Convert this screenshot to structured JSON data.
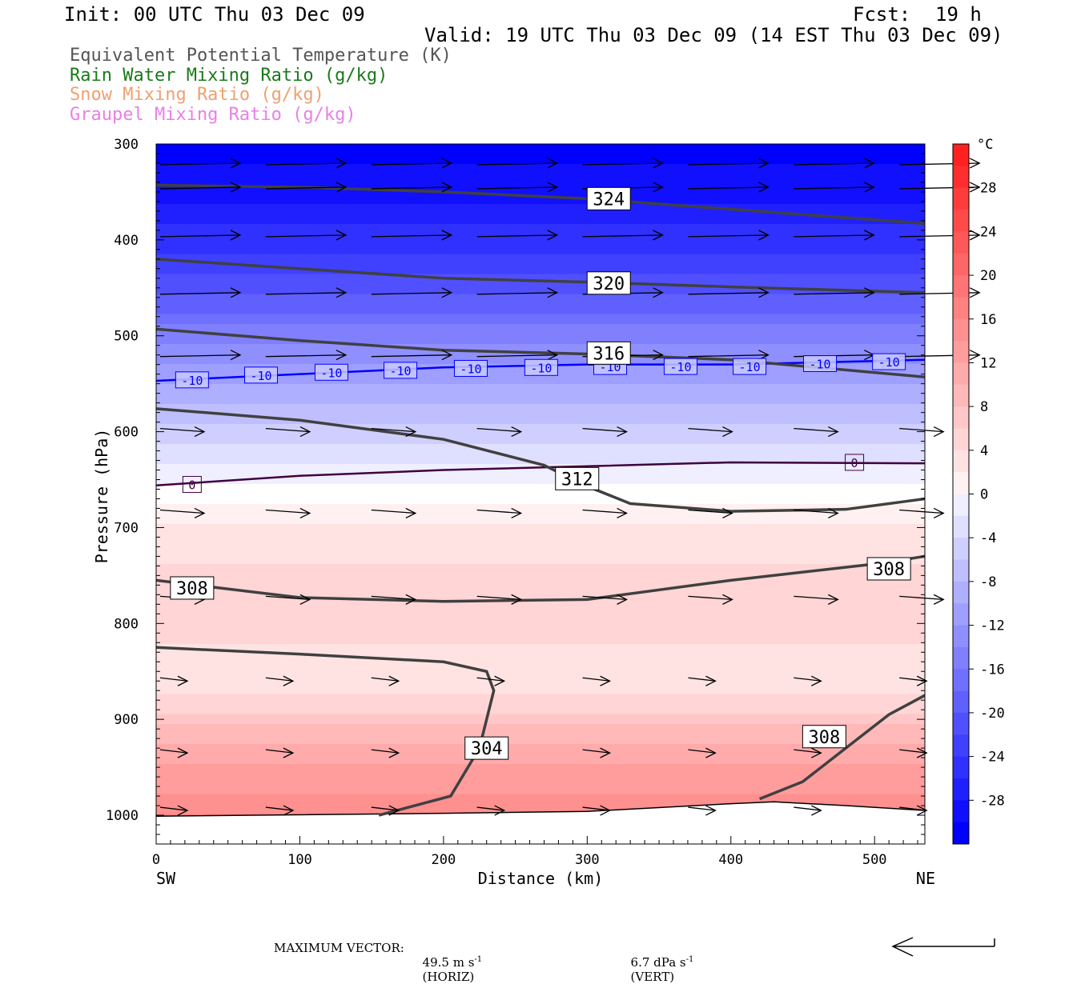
{
  "header": {
    "init": "Init: 00 UTC Thu 03 Dec 09",
    "fcst_label": "Fcst:",
    "fcst_value": "19 h",
    "valid": "Valid: 19 UTC Thu 03 Dec 09 (14 EST Thu 03 Dec 09)"
  },
  "legend": [
    {
      "text": "Equivalent Potential Temperature (K)",
      "color": "#555555"
    },
    {
      "text": "Rain Water Mixing Ratio (g/kg)",
      "color": "#1a7a1a"
    },
    {
      "text": "Snow Mixing Ratio (g/kg)",
      "color": "#f0a070"
    },
    {
      "text": "Graupel Mixing Ratio (g/kg)",
      "color": "#e880e8"
    }
  ],
  "footer": {
    "max_vector_label": "MAXIMUM VECTOR:",
    "horiz_value": "49.5 m s",
    "horiz_unit": "(HORIZ)",
    "vert_value": "6.7 dPa s",
    "vert_unit": "(VERT)",
    "exponent": "-1"
  },
  "chart_data": {
    "type": "heatmap",
    "xlabel": "Distance (km)",
    "ylabel": "Pressure (hPa)",
    "xlim": [
      0,
      535
    ],
    "ylim": [
      1030,
      300
    ],
    "x_ticks": [
      0,
      100,
      200,
      300,
      400,
      500
    ],
    "y_ticks": [
      300,
      400,
      500,
      600,
      700,
      800,
      900,
      1000
    ],
    "x_end_labels": {
      "left": "SW",
      "right": "NE"
    },
    "colorbar": {
      "unit": "°C",
      "min": -32,
      "max": 32,
      "tick_labels": [
        28,
        24,
        20,
        16,
        12,
        8,
        4,
        0,
        -4,
        -8,
        -12,
        -16,
        -20,
        -24,
        -28
      ],
      "cold_color": "#0000ff",
      "warm_color": "#ff2020"
    },
    "temperature_field": {
      "pressure_levels": [
        300,
        350,
        400,
        450,
        500,
        550,
        600,
        650,
        700,
        750,
        800,
        850,
        900,
        950,
        1000
      ],
      "temperature_c": [
        -32,
        -30,
        -26,
        -22,
        -16,
        -11,
        -6,
        -1,
        3,
        6,
        7,
        3,
        8,
        13,
        17
      ]
    },
    "theta_e_contours": [
      {
        "label": "324",
        "points": [
          [
            0,
            343
          ],
          [
            100,
            345
          ],
          [
            200,
            350
          ],
          [
            300,
            357
          ],
          [
            400,
            368
          ],
          [
            535,
            383
          ]
        ],
        "label_at": [
          315,
          357
        ]
      },
      {
        "label": "320",
        "points": [
          [
            0,
            420
          ],
          [
            100,
            430
          ],
          [
            200,
            440
          ],
          [
            300,
            444
          ],
          [
            400,
            449
          ],
          [
            535,
            455
          ]
        ],
        "label_at": [
          315,
          445
        ]
      },
      {
        "label": "316",
        "points": [
          [
            0,
            493
          ],
          [
            100,
            505
          ],
          [
            200,
            515
          ],
          [
            300,
            519
          ],
          [
            400,
            525
          ],
          [
            535,
            543
          ]
        ],
        "label_at": [
          315,
          518
        ]
      },
      {
        "label": "312",
        "points": [
          [
            0,
            576
          ],
          [
            100,
            588
          ],
          [
            200,
            608
          ],
          [
            270,
            635
          ],
          [
            300,
            657
          ],
          [
            330,
            675
          ],
          [
            400,
            683
          ],
          [
            480,
            681
          ],
          [
            535,
            670
          ]
        ],
        "label_at": [
          293,
          649
        ]
      },
      {
        "label": "308",
        "points": [
          [
            0,
            755
          ],
          [
            100,
            773
          ],
          [
            200,
            777
          ],
          [
            300,
            775
          ],
          [
            400,
            755
          ],
          [
            500,
            738
          ],
          [
            535,
            730
          ]
        ],
        "label_at": [
          25,
          763
        ],
        "label2": "308",
        "label2_at": [
          510,
          743
        ]
      },
      {
        "label": "304",
        "points": [
          [
            0,
            825
          ],
          [
            100,
            832
          ],
          [
            200,
            840
          ],
          [
            230,
            850
          ],
          [
            235,
            870
          ],
          [
            225,
            930
          ],
          [
            205,
            980
          ],
          [
            155,
            1000
          ]
        ],
        "label_at": [
          230,
          930
        ]
      },
      {
        "label": "308",
        "points": [
          [
            420,
            983
          ],
          [
            450,
            965
          ],
          [
            480,
            930
          ],
          [
            510,
            895
          ],
          [
            535,
            875
          ]
        ],
        "label_at": [
          465,
          918
        ]
      }
    ],
    "isotherms": [
      {
        "label": "-10",
        "color": "#0000ff",
        "points": [
          [
            0,
            547
          ],
          [
            100,
            540
          ],
          [
            200,
            533
          ],
          [
            300,
            530
          ],
          [
            400,
            530
          ],
          [
            535,
            525
          ]
        ],
        "label_positions": [
          [
            25,
            546
          ],
          [
            73,
            541
          ],
          [
            122,
            538
          ],
          [
            170,
            536
          ],
          [
            219,
            534
          ],
          [
            268,
            533
          ],
          [
            316,
            532
          ],
          [
            365,
            532
          ],
          [
            413,
            532
          ],
          [
            462,
            529
          ],
          [
            510,
            527
          ]
        ]
      },
      {
        "label": "0",
        "color": "#400040",
        "points": [
          [
            0,
            656
          ],
          [
            100,
            646
          ],
          [
            200,
            640
          ],
          [
            300,
            636
          ],
          [
            400,
            632
          ],
          [
            535,
            633
          ]
        ],
        "label_positions": [
          [
            25,
            655
          ],
          [
            486,
            632
          ]
        ]
      }
    ],
    "surface_pressure": [
      [
        0,
        1001
      ],
      [
        200,
        998
      ],
      [
        300,
        996
      ],
      [
        400,
        988
      ],
      [
        430,
        986
      ],
      [
        480,
        990
      ],
      [
        535,
        995
      ]
    ],
    "wind_levels": [
      320,
      345,
      395,
      455,
      520,
      595,
      680,
      770,
      855,
      930,
      990
    ]
  }
}
